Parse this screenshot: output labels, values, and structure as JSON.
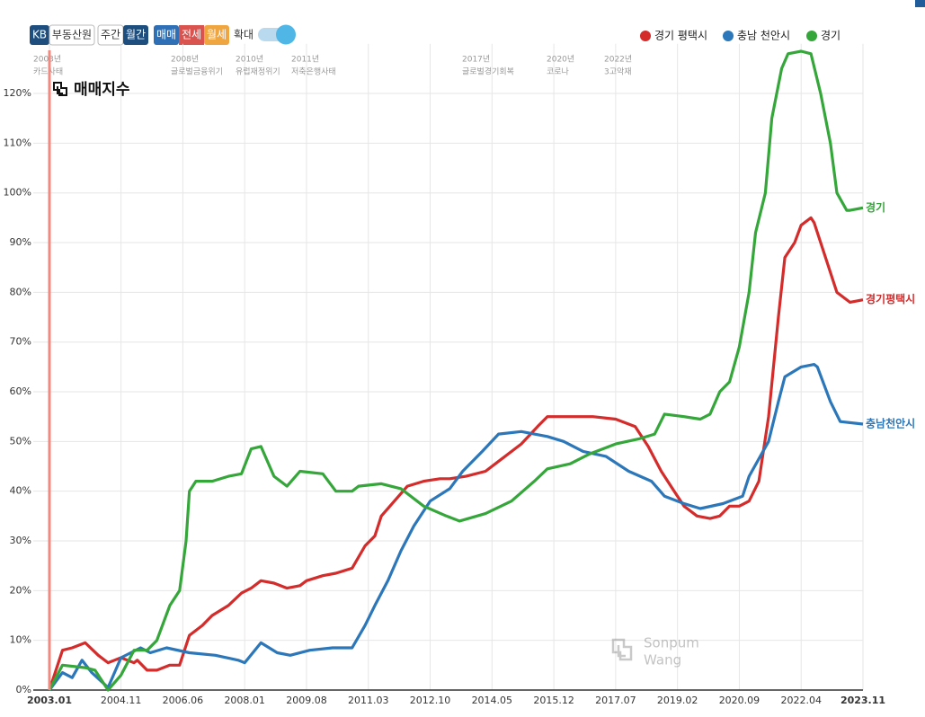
{
  "controls": {
    "source": [
      "KB",
      "부동산원"
    ],
    "period": [
      "주간",
      "월간"
    ],
    "kind": [
      "매매",
      "전세",
      "월세"
    ],
    "zoom": "확대"
  },
  "chart_data": {
    "type": "line",
    "title": "매매지수",
    "watermark": [
      "Sonpum",
      "Wang"
    ],
    "annotations": [
      [
        "2003년",
        "카드사태"
      ],
      [
        "2008년",
        "글로벌금융위기"
      ],
      [
        "2010년",
        "유럽재정위기"
      ],
      [
        "2011년",
        "저축은행사태"
      ],
      [
        "2017년",
        "글로벌경기회복"
      ],
      [
        "2020년",
        "코로나"
      ],
      [
        "2022년",
        "3고악재"
      ]
    ],
    "xlim": [
      "2003.01",
      "2023.11"
    ],
    "xticks": [
      "2003.01",
      "2004.11",
      "2006.06",
      "2008.01",
      "2009.08",
      "2011.03",
      "2012.10",
      "2014.05",
      "2015.12",
      "2017.07",
      "2019.02",
      "2020.09",
      "2022.04",
      "2023.11"
    ],
    "ylim": [
      0,
      130
    ],
    "yticks": [
      {
        "value": 0,
        "label": "0%"
      },
      {
        "value": 10,
        "label": "10%"
      },
      {
        "value": 20,
        "label": "20%"
      },
      {
        "value": 30,
        "label": "30%"
      },
      {
        "value": 40,
        "label": "40%"
      },
      {
        "value": 50,
        "label": "50%"
      },
      {
        "value": 60,
        "label": "60%"
      },
      {
        "value": 70,
        "label": "70%"
      },
      {
        "value": 80,
        "label": "80%"
      },
      {
        "value": 90,
        "label": "90%"
      },
      {
        "value": 100,
        "label": "100%"
      },
      {
        "value": 110,
        "label": "110%"
      },
      {
        "value": 120,
        "label": "120%"
      }
    ],
    "grid": true,
    "series": [
      {
        "name": "경기 평택시",
        "end_label": "경기평택시",
        "color": "#d42b2b",
        "x": [
          "2003.01",
          "2003.05",
          "2003.08",
          "2003.12",
          "2004.04",
          "2004.07",
          "2004.11",
          "2005.03",
          "2005.04",
          "2005.07",
          "2005.10",
          "2006.02",
          "2006.05",
          "2006.08",
          "2006.12",
          "2007.03",
          "2007.08",
          "2007.12",
          "2008.03",
          "2008.06",
          "2008.10",
          "2009.02",
          "2009.06",
          "2009.08",
          "2010.01",
          "2010.05",
          "2010.10",
          "2011.02",
          "2011.05",
          "2011.07",
          "2011.11",
          "2012.03",
          "2012.08",
          "2013.01",
          "2013.04",
          "2013.09",
          "2014.03",
          "2014.08",
          "2015.02",
          "2015.07",
          "2015.10",
          "2016.07",
          "2016.12",
          "2017.07",
          "2018.01",
          "2018.05",
          "2018.09",
          "2019.01",
          "2019.04",
          "2019.08",
          "2019.12",
          "2020.03",
          "2020.06",
          "2020.09",
          "2020.12",
          "2021.03",
          "2021.06",
          "2021.09",
          "2021.11",
          "2022.02",
          "2022.04",
          "2022.07",
          "2022.08",
          "2022.12",
          "2023.03",
          "2023.07",
          "2023.11"
        ],
        "values": [
          0,
          8,
          8.5,
          9.5,
          7,
          5.5,
          6.5,
          5.5,
          6,
          4,
          4,
          5,
          5,
          11,
          13,
          15,
          17,
          19.5,
          20.5,
          22,
          21.5,
          20.5,
          21,
          22,
          23,
          23.5,
          24.5,
          29,
          31,
          35,
          38,
          41,
          42,
          42.5,
          42.5,
          43,
          44,
          46.5,
          49.5,
          53,
          55,
          55,
          55,
          54.5,
          53,
          49,
          44,
          40,
          37,
          35,
          34.5,
          35,
          37,
          37,
          38,
          42,
          55,
          75,
          87,
          90,
          93.5,
          95,
          94,
          86,
          80,
          78,
          78.5
        ]
      },
      {
        "name": "충남 천안시",
        "end_label": "충남천안시",
        "color": "#2b77b9",
        "x": [
          "2003.01",
          "2003.05",
          "2003.08",
          "2003.11",
          "2004.02",
          "2004.07",
          "2004.11",
          "2005.05",
          "2005.08",
          "2006.01",
          "2006.08",
          "2007.04",
          "2007.11",
          "2008.01",
          "2008.06",
          "2008.11",
          "2009.03",
          "2009.09",
          "2010.04",
          "2010.10",
          "2011.02",
          "2011.05",
          "2011.09",
          "2012.01",
          "2012.05",
          "2012.10",
          "2013.04",
          "2013.08",
          "2014.02",
          "2014.07",
          "2015.02",
          "2015.10",
          "2016.03",
          "2016.09",
          "2017.04",
          "2017.11",
          "2018.06",
          "2018.10",
          "2019.04",
          "2019.09",
          "2020.04",
          "2020.10",
          "2020.12",
          "2021.06",
          "2021.09",
          "2021.11",
          "2022.04",
          "2022.08",
          "2022.09",
          "2023.01",
          "2023.04",
          "2023.11"
        ],
        "values": [
          0,
          3.5,
          2.5,
          6,
          3.5,
          0.5,
          6.5,
          8.5,
          7.5,
          8.5,
          7.5,
          7,
          6,
          5.5,
          9.5,
          7.5,
          7,
          8,
          8.5,
          8.5,
          13,
          17,
          22,
          28,
          33,
          38,
          40.5,
          44,
          48,
          51.5,
          52,
          51,
          50,
          48,
          47,
          44,
          42,
          39,
          37.5,
          36.5,
          37.5,
          39,
          43,
          50,
          58,
          63,
          65,
          65.5,
          65,
          58,
          54,
          53.5
        ]
      },
      {
        "name": "경기",
        "end_label": "경기",
        "color": "#35a63a",
        "x": [
          "2003.01",
          "2003.05",
          "2003.12",
          "2004.03",
          "2004.07",
          "2004.11",
          "2005.03",
          "2005.07",
          "2005.10",
          "2006.02",
          "2006.05",
          "2006.07",
          "2006.08",
          "2006.10",
          "2007.03",
          "2007.08",
          "2007.12",
          "2008.03",
          "2008.06",
          "2008.10",
          "2009.02",
          "2009.06",
          "2010.01",
          "2010.05",
          "2010.10",
          "2010.12",
          "2011.07",
          "2012.01",
          "2012.08",
          "2013.03",
          "2013.07",
          "2014.03",
          "2014.11",
          "2015.06",
          "2015.10",
          "2016.05",
          "2016.11",
          "2017.07",
          "2018.02",
          "2018.07",
          "2018.10",
          "2019.04",
          "2019.09",
          "2019.12",
          "2020.03",
          "2020.06",
          "2020.09",
          "2020.12",
          "2021.02",
          "2021.05",
          "2021.07",
          "2021.10",
          "2021.12",
          "2022.04",
          "2022.07",
          "2022.10",
          "2023.01",
          "2023.03",
          "2023.06",
          "2023.07",
          "2023.11"
        ],
        "values": [
          0,
          5,
          4.5,
          4,
          0,
          3,
          8,
          8,
          10,
          17,
          20,
          30,
          40,
          42,
          42,
          43,
          43.5,
          48.5,
          49,
          43,
          41,
          44,
          43.5,
          40,
          40,
          41,
          41.5,
          40.5,
          37,
          35,
          34,
          35.5,
          38,
          42,
          44.5,
          45.5,
          47.5,
          49.5,
          50.5,
          51.5,
          55.5,
          55,
          54.5,
          55.5,
          60,
          62,
          69,
          80,
          92,
          100,
          115,
          125,
          128,
          128.5,
          128,
          120,
          110,
          100,
          96.5,
          96.5,
          97
        ]
      }
    ]
  }
}
